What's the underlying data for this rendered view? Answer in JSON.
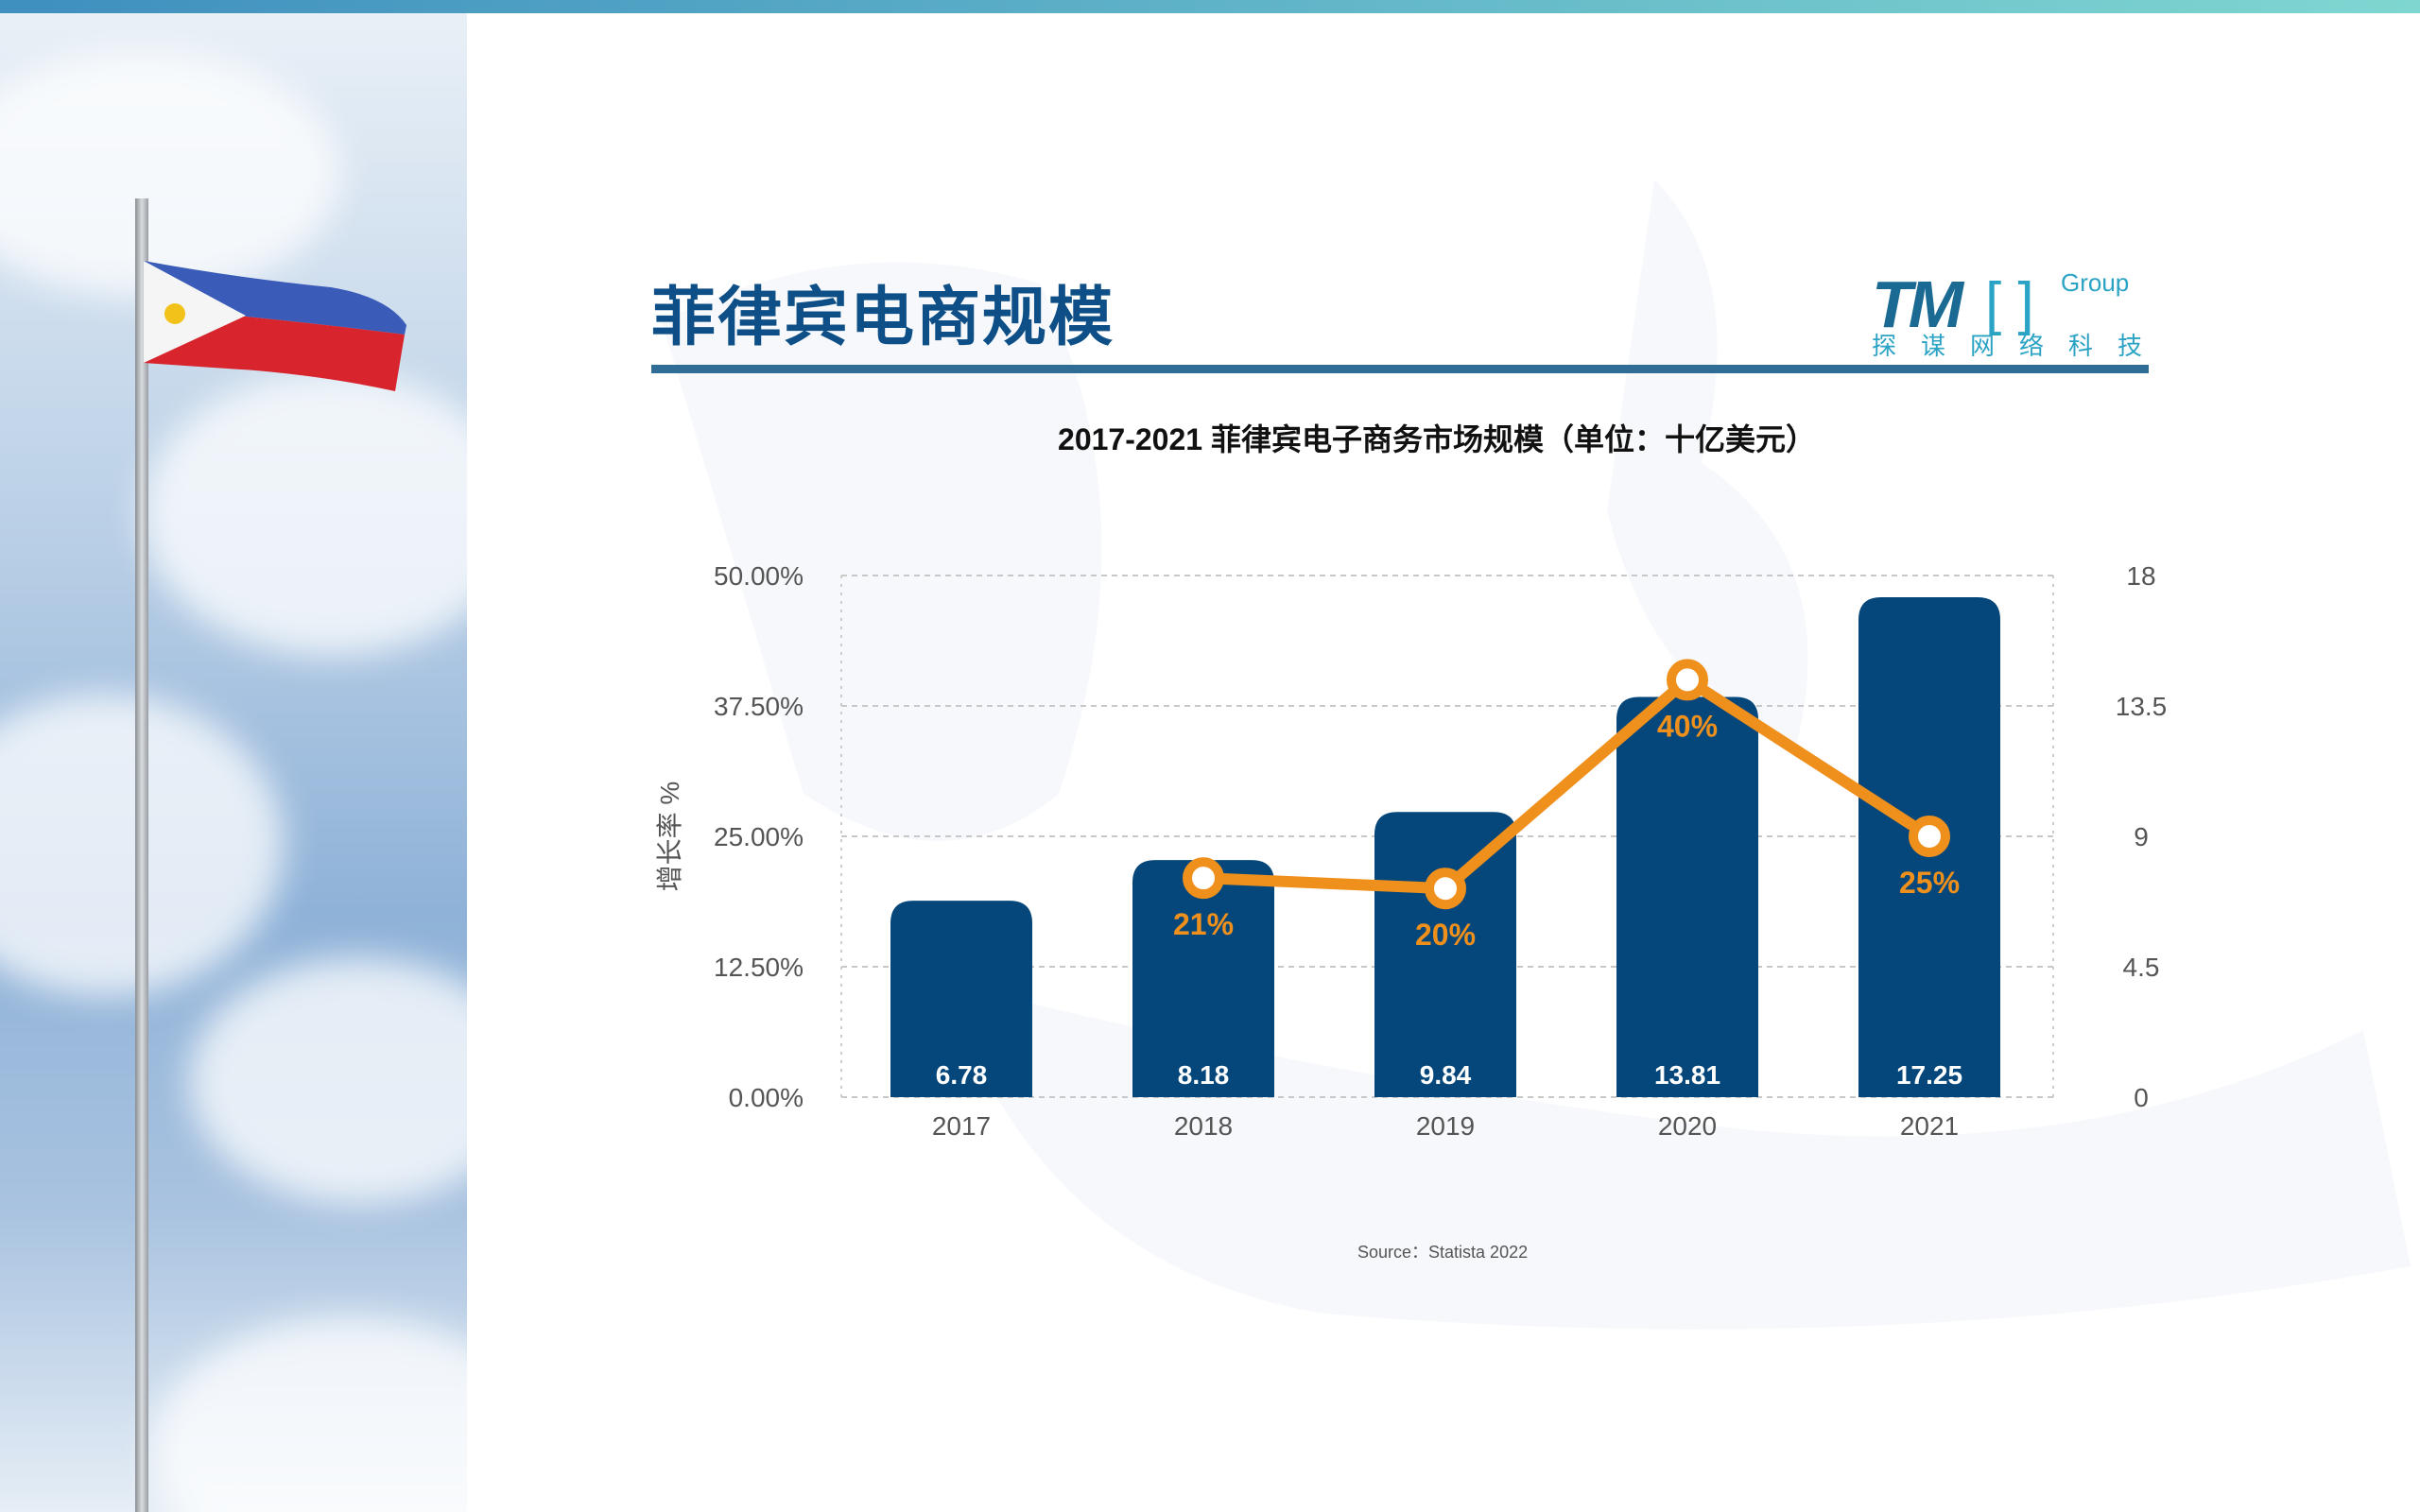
{
  "header": {
    "title": "菲律宾电商规模"
  },
  "logo": {
    "mark": "TM",
    "brackets": "[ ]",
    "group": "Group",
    "tagline": "探谋网络科技"
  },
  "chart_data": {
    "type": "bar+line",
    "title": "2017-2021 菲律宾电子商务市场规模（单位：十亿美元）",
    "categories": [
      "2017",
      "2018",
      "2019",
      "2020",
      "2021"
    ],
    "series": [
      {
        "type": "bar",
        "axis": "right",
        "values": [
          6.78,
          8.18,
          9.84,
          13.81,
          17.25
        ],
        "labels": [
          "6.78",
          "8.18",
          "9.84",
          "13.81",
          "17.25"
        ],
        "color": "#05477a"
      },
      {
        "type": "line",
        "axis": "left",
        "values": [
          null,
          21,
          20,
          40,
          25
        ],
        "labels": [
          "",
          "21%",
          "20%",
          "40%",
          "25%"
        ],
        "color": "#f0901c"
      }
    ],
    "ylabel": "增长率 %",
    "yleft": {
      "range": [
        0,
        50
      ],
      "ticks": [
        "0.00%",
        "12.50%",
        "25.00%",
        "37.50%",
        "50.00%"
      ]
    },
    "yright": {
      "range": [
        0,
        18
      ],
      "ticks": [
        "0",
        "4.5",
        "9",
        "13.5",
        "18"
      ]
    },
    "grid": true,
    "source": "Source：Statista 2022"
  }
}
